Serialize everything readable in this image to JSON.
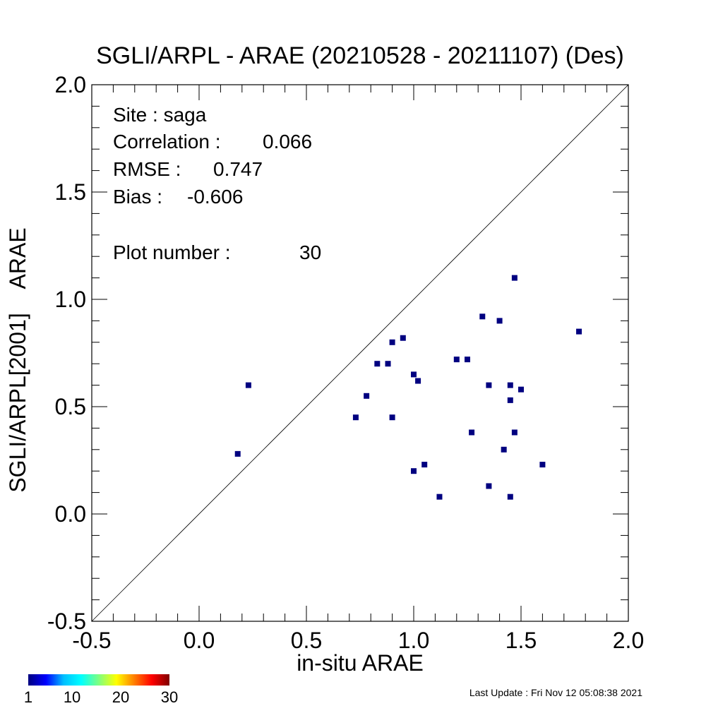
{
  "chart_data": {
    "type": "scatter",
    "title": "SGLI/ARPL - ARAE (20210528 - 20211107) (Des)",
    "xlabel": "in-situ ARAE",
    "ylabel": "SGLI/ARPL[2001]    ARAE",
    "xlim": [
      -0.5,
      2.0
    ],
    "ylim": [
      -0.5,
      2.0
    ],
    "xticks": [
      "-0.5",
      "0.0",
      "0.5",
      "1.0",
      "1.5",
      "2.0"
    ],
    "yticks": [
      "-0.5",
      "0.0",
      "0.5",
      "1.0",
      "1.5",
      "2.0"
    ],
    "one_to_one_line": true,
    "grid": false,
    "marker_color": "#000080",
    "stats": {
      "site_label": "Site : saga",
      "correlation_label": "Correlation :",
      "correlation_value": "0.066",
      "rmse_label": "RMSE :",
      "rmse_value": "0.747",
      "bias_label": "Bias :",
      "bias_value": "-0.606",
      "plot_number_label": "Plot number :",
      "plot_number_value": "30"
    },
    "colorbar": {
      "tick_labels": [
        "1",
        "10",
        "20",
        "30"
      ],
      "tick_values": [
        1,
        10,
        20,
        30
      ],
      "range": [
        1,
        30
      ],
      "colors": [
        "#000080",
        "#0000ff",
        "#00bfff",
        "#00ffff",
        "#7fff7f",
        "#ffff00",
        "#ff7f00",
        "#ff0000",
        "#800000"
      ]
    },
    "points": [
      {
        "x": 0.18,
        "y": 0.28
      },
      {
        "x": 0.23,
        "y": 0.6
      },
      {
        "x": 0.73,
        "y": 0.45
      },
      {
        "x": 0.78,
        "y": 0.55
      },
      {
        "x": 0.83,
        "y": 0.7
      },
      {
        "x": 0.88,
        "y": 0.7
      },
      {
        "x": 0.9,
        "y": 0.8
      },
      {
        "x": 0.9,
        "y": 0.45
      },
      {
        "x": 0.95,
        "y": 0.82
      },
      {
        "x": 1.0,
        "y": 0.65
      },
      {
        "x": 1.0,
        "y": 0.2
      },
      {
        "x": 1.02,
        "y": 0.62
      },
      {
        "x": 1.05,
        "y": 0.23
      },
      {
        "x": 1.12,
        "y": 0.08
      },
      {
        "x": 1.2,
        "y": 0.72
      },
      {
        "x": 1.25,
        "y": 0.72
      },
      {
        "x": 1.27,
        "y": 0.38
      },
      {
        "x": 1.32,
        "y": 0.92
      },
      {
        "x": 1.35,
        "y": 0.6
      },
      {
        "x": 1.35,
        "y": 0.13
      },
      {
        "x": 1.4,
        "y": 0.9
      },
      {
        "x": 1.42,
        "y": 0.3
      },
      {
        "x": 1.45,
        "y": 0.6
      },
      {
        "x": 1.45,
        "y": 0.53
      },
      {
        "x": 1.45,
        "y": 0.08
      },
      {
        "x": 1.47,
        "y": 1.1
      },
      {
        "x": 1.47,
        "y": 0.38
      },
      {
        "x": 1.5,
        "y": 0.58
      },
      {
        "x": 1.6,
        "y": 0.23
      },
      {
        "x": 1.77,
        "y": 0.85
      }
    ]
  },
  "footer": {
    "last_update": "Last Update : Fri Nov 12 05:08:38 2021"
  }
}
